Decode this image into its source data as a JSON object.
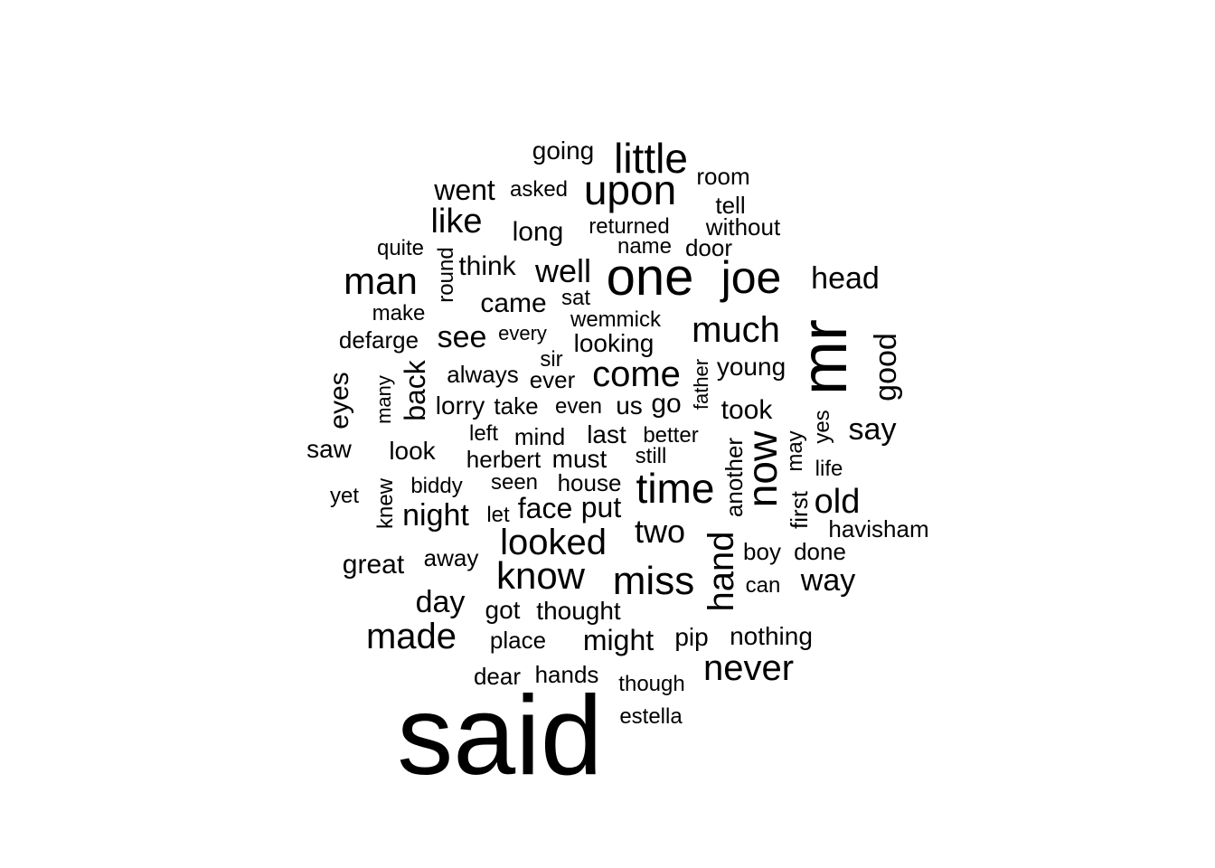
{
  "word_cloud": {
    "text_color": "#000000",
    "background_color": "#ffffff",
    "words": [
      {
        "text": "said",
        "rotated": false
      },
      {
        "text": "mr",
        "rotated": true
      },
      {
        "text": "one",
        "rotated": false
      },
      {
        "text": "joe",
        "rotated": false
      },
      {
        "text": "little",
        "rotated": false
      },
      {
        "text": "upon",
        "rotated": false
      },
      {
        "text": "time",
        "rotated": false
      },
      {
        "text": "now",
        "rotated": true
      },
      {
        "text": "miss",
        "rotated": false
      },
      {
        "text": "know",
        "rotated": false
      },
      {
        "text": "much",
        "rotated": false
      },
      {
        "text": "man",
        "rotated": false
      },
      {
        "text": "come",
        "rotated": false
      },
      {
        "text": "looked",
        "rotated": false
      },
      {
        "text": "made",
        "rotated": false
      },
      {
        "text": "never",
        "rotated": false
      },
      {
        "text": "hand",
        "rotated": true
      },
      {
        "text": "old",
        "rotated": false
      },
      {
        "text": "well",
        "rotated": false
      },
      {
        "text": "like",
        "rotated": false
      },
      {
        "text": "two",
        "rotated": false
      },
      {
        "text": "head",
        "rotated": false
      },
      {
        "text": "good",
        "rotated": true
      },
      {
        "text": "say",
        "rotated": false
      },
      {
        "text": "way",
        "rotated": false
      },
      {
        "text": "night",
        "rotated": false
      },
      {
        "text": "see",
        "rotated": false
      },
      {
        "text": "went",
        "rotated": false
      },
      {
        "text": "might",
        "rotated": false
      },
      {
        "text": "face",
        "rotated": false
      },
      {
        "text": "put",
        "rotated": false
      },
      {
        "text": "day",
        "rotated": false
      },
      {
        "text": "back",
        "rotated": true
      },
      {
        "text": "think",
        "rotated": false
      },
      {
        "text": "came",
        "rotated": false
      },
      {
        "text": "long",
        "rotated": false
      },
      {
        "text": "great",
        "rotated": false
      },
      {
        "text": "eyes",
        "rotated": true
      },
      {
        "text": "go",
        "rotated": false
      },
      {
        "text": "took",
        "rotated": false
      },
      {
        "text": "going",
        "rotated": false
      },
      {
        "text": "looking",
        "rotated": false
      },
      {
        "text": "young",
        "rotated": false
      },
      {
        "text": "nothing",
        "rotated": false
      },
      {
        "text": "thought",
        "rotated": false
      },
      {
        "text": "lorry",
        "rotated": false
      },
      {
        "text": "look",
        "rotated": false
      },
      {
        "text": "saw",
        "rotated": false
      },
      {
        "text": "last",
        "rotated": false
      },
      {
        "text": "another",
        "rotated": true
      },
      {
        "text": "first",
        "rotated": true
      },
      {
        "text": "must",
        "rotated": false
      },
      {
        "text": "herbert",
        "rotated": false
      },
      {
        "text": "us",
        "rotated": false
      },
      {
        "text": "away",
        "rotated": false
      },
      {
        "text": "got",
        "rotated": false
      },
      {
        "text": "pip",
        "rotated": false
      },
      {
        "text": "house",
        "rotated": false
      },
      {
        "text": "defarge",
        "rotated": false
      },
      {
        "text": "round",
        "rotated": true
      },
      {
        "text": "havisham",
        "rotated": false
      },
      {
        "text": "done",
        "rotated": false
      },
      {
        "text": "boy",
        "rotated": false
      },
      {
        "text": "without",
        "rotated": false
      },
      {
        "text": "room",
        "rotated": false
      },
      {
        "text": "wemmick",
        "rotated": false
      },
      {
        "text": "always",
        "rotated": false
      },
      {
        "text": "mind",
        "rotated": false
      },
      {
        "text": "hands",
        "rotated": false
      },
      {
        "text": "dear",
        "rotated": false
      },
      {
        "text": "place",
        "rotated": false
      },
      {
        "text": "may",
        "rotated": true
      },
      {
        "text": "returned",
        "rotated": false
      },
      {
        "text": "seen",
        "rotated": false
      },
      {
        "text": "take",
        "rotated": false
      },
      {
        "text": "even",
        "rotated": false
      },
      {
        "text": "ever",
        "rotated": false
      },
      {
        "text": "knew",
        "rotated": true
      },
      {
        "text": "door",
        "rotated": false
      },
      {
        "text": "tell",
        "rotated": false
      },
      {
        "text": "asked",
        "rotated": false
      },
      {
        "text": "quite",
        "rotated": false
      },
      {
        "text": "life",
        "rotated": false
      },
      {
        "text": "yes",
        "rotated": true
      },
      {
        "text": "still",
        "rotated": false
      },
      {
        "text": "biddy",
        "rotated": false
      },
      {
        "text": "make",
        "rotated": false
      },
      {
        "text": "better",
        "rotated": false
      },
      {
        "text": "left",
        "rotated": false
      },
      {
        "text": "can",
        "rotated": false
      },
      {
        "text": "though",
        "rotated": false
      },
      {
        "text": "estella",
        "rotated": false
      },
      {
        "text": "name",
        "rotated": false
      },
      {
        "text": "every",
        "rotated": false
      },
      {
        "text": "many",
        "rotated": true
      },
      {
        "text": "father",
        "rotated": true
      },
      {
        "text": "sat",
        "rotated": false
      },
      {
        "text": "sir",
        "rotated": false
      },
      {
        "text": "let",
        "rotated": false
      },
      {
        "text": "yet",
        "rotated": false
      }
    ]
  }
}
